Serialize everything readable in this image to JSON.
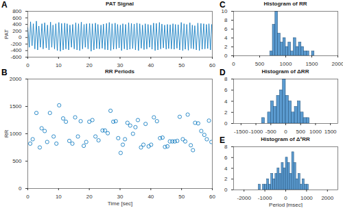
{
  "chart_data": [
    {
      "type": "line",
      "annotation": "A",
      "title": "PAT Signal",
      "ylabel": "PAT",
      "color": "#0072bd",
      "xlim": [
        0,
        60
      ],
      "xticks": [
        0,
        10,
        20,
        30,
        40,
        50,
        60
      ],
      "ylim": [
        -600,
        800
      ],
      "yticks": [
        -600,
        -400,
        -200,
        0,
        200,
        400,
        600,
        800
      ],
      "x": [
        0,
        0.5,
        0.9,
        1.4,
        1.8,
        2.3,
        2.8,
        3.2,
        3.6,
        4.1,
        4.6,
        5.0,
        5.5,
        6.0,
        6.4,
        6.9,
        7.4,
        7.8,
        8.2,
        8.7,
        9.1,
        9.6,
        10.1,
        10.6,
        11.0,
        11.5,
        12.0,
        12.4,
        12.8,
        13.3,
        13.7,
        14.2,
        14.6,
        15.1,
        15.6,
        16.0,
        16.5,
        16.9,
        17.4,
        17.8,
        18.3,
        18.7,
        19.1,
        19.6,
        20.1,
        20.6,
        21.0,
        21.5,
        22.0,
        22.4,
        22.8,
        23.3,
        23.8,
        24.2,
        24.6,
        25.1,
        25.6,
        26.0,
        26.5,
        27.0,
        27.4,
        27.9,
        28.4,
        28.8,
        29.2,
        29.7,
        30.1,
        30.5,
        30.9,
        31.4,
        31.8,
        32.3,
        32.8,
        33.2,
        33.7,
        34.1,
        34.6,
        35.0,
        35.5,
        36.0,
        36.4,
        36.9,
        37.3,
        37.8,
        38.2,
        38.7,
        39.1,
        39.6,
        40.0,
        40.4,
        40.9,
        41.4,
        41.8,
        42.3,
        42.8,
        43.2,
        43.6,
        44.1,
        44.5,
        45.0,
        45.4,
        45.8,
        46.3,
        46.7,
        47.2,
        47.6,
        48.0,
        48.5,
        48.9,
        49.4,
        49.9,
        50.4,
        50.8,
        51.2,
        51.7,
        52.2,
        52.7,
        53.1,
        53.5,
        53.9,
        54.3,
        54.8,
        55.3,
        55.8,
        56.3,
        56.7,
        57.2,
        57.6,
        58.1,
        58.5,
        58.9,
        59.4,
        59.8,
        60
      ],
      "values": [
        300,
        -300,
        480,
        -250,
        420,
        -350,
        500,
        -380,
        350,
        -300,
        420,
        -350,
        450,
        -320,
        380,
        -380,
        470,
        -300,
        380,
        -350,
        420,
        -400,
        460,
        -420,
        430,
        -380,
        440,
        -350,
        420,
        -380,
        380,
        -300,
        400,
        -350,
        450,
        -380,
        420,
        -400,
        470,
        -350,
        400,
        -300,
        420,
        -350,
        430,
        -420,
        420,
        -380,
        440,
        -340,
        400,
        -350,
        380,
        -330,
        410,
        -370,
        430,
        -380,
        460,
        -400,
        420,
        -360,
        440,
        -350,
        400,
        -320,
        380,
        -400,
        420,
        -350,
        400,
        -380,
        450,
        -360,
        430,
        -340,
        410,
        -380,
        440,
        -400,
        420,
        -330,
        380,
        -370,
        420,
        -350,
        400,
        -300,
        380,
        -360,
        440,
        -400,
        430,
        -380,
        460,
        -350,
        410,
        -320,
        380,
        -360,
        400,
        -340,
        390,
        -350,
        420,
        -360,
        400,
        -330,
        390,
        -380,
        460,
        -400,
        420,
        -360,
        400,
        -390,
        450,
        -340,
        380,
        -350,
        360,
        -380,
        440,
        -400,
        430,
        -360,
        420,
        -350,
        400,
        -340,
        420,
        -380,
        400,
        100
      ]
    },
    {
      "type": "scatter",
      "annotation": "B",
      "title": "RR Periods",
      "xlabel": "Time [sec]",
      "ylabel": "RR",
      "color": "#0072bd",
      "marker": "o",
      "xlim": [
        0,
        60
      ],
      "xticks": [
        0,
        10,
        20,
        30,
        40,
        50,
        60
      ],
      "ylim": [
        0,
        2000
      ],
      "yticks": [
        0,
        500,
        1000,
        1500,
        2000
      ],
      "x": [
        0.8,
        1.6,
        2.8,
        3.9,
        4.5,
        5.5,
        6.3,
        7.2,
        8.4,
        9.3,
        10.2,
        11.5,
        12.4,
        13.5,
        14.5,
        15.4,
        16.3,
        17.2,
        18.2,
        19.0,
        20.0,
        21.0,
        22.0,
        23.0,
        24.3,
        25.1,
        26.0,
        26.9,
        27.8,
        28.6,
        29.4,
        30.2,
        30.9,
        31.6,
        32.4,
        33.3,
        34.2,
        35.0,
        35.8,
        36.8,
        37.6,
        38.3,
        39.3,
        40.1,
        41.0,
        42.0,
        43.0,
        43.8,
        44.6,
        45.4,
        46.2,
        47.0,
        47.8,
        48.6,
        49.4,
        50.4,
        51.2,
        52.0,
        53.0,
        53.7,
        54.4,
        55.4,
        56.4,
        57.4,
        58.2,
        58.9,
        59.7
      ],
      "values": [
        820,
        900,
        1380,
        750,
        1100,
        1050,
        850,
        1380,
        950,
        820,
        1520,
        1280,
        1220,
        870,
        820,
        1300,
        950,
        1230,
        780,
        850,
        1220,
        1250,
        950,
        880,
        1060,
        1060,
        1010,
        1420,
        1220,
        1230,
        920,
        650,
        800,
        900,
        1200,
        1150,
        1000,
        1120,
        1250,
        750,
        800,
        1180,
        770,
        800,
        1300,
        1230,
        920,
        930,
        760,
        770,
        860,
        860,
        860,
        870,
        1310,
        900,
        860,
        1350,
        790,
        700,
        1200,
        1190,
        1050,
        980,
        900,
        1240,
        850
      ]
    },
    {
      "type": "histogram",
      "annotation": "C",
      "title": "Histogram of RR",
      "color": "#5b9bd0",
      "xlim": [
        0,
        2000
      ],
      "xticks": [
        0,
        500,
        1000,
        1500,
        2000
      ],
      "ylim": [
        0,
        10
      ],
      "yticks": [
        0,
        2,
        4,
        6,
        8,
        10
      ],
      "bins": [
        700,
        750,
        800,
        850,
        900,
        950,
        1000,
        1050,
        1100,
        1150,
        1200,
        1250,
        1300,
        1350,
        1400,
        1450,
        1500,
        1550
      ],
      "values": [
        1,
        7,
        10,
        5,
        3,
        4,
        2,
        3,
        1,
        4,
        2,
        3,
        2,
        1,
        1,
        0,
        1
      ]
    },
    {
      "type": "histogram",
      "annotation": "D",
      "title": "Histogram of ΔRR",
      "color": "#5b9bd0",
      "xlim": [
        -1750,
        1750
      ],
      "xticks": [
        -1500,
        -1000,
        -500,
        0,
        500,
        1000,
        1500
      ],
      "ylim": [
        0,
        8
      ],
      "yticks": [
        0,
        2,
        4,
        6,
        8
      ],
      "bins": [
        -800,
        -700,
        -600,
        -500,
        -400,
        -300,
        -200,
        -100,
        0,
        100,
        200,
        300,
        400,
        500,
        600,
        700,
        800
      ],
      "values": [
        1,
        0,
        2,
        4,
        3,
        5,
        6,
        8,
        5,
        4,
        2,
        3,
        4,
        2,
        1,
        1
      ]
    },
    {
      "type": "histogram",
      "annotation": "E",
      "title": "Histogram of Δ²RR",
      "xlabel": "Period [msec]",
      "color": "#5b9bd0",
      "xlim": [
        -2500,
        2500
      ],
      "xticks": [
        -2000,
        -1000,
        0,
        1000,
        2000
      ],
      "ylim": [
        0,
        8
      ],
      "yticks": [
        0,
        2,
        4,
        6,
        8
      ],
      "bins": [
        -1300,
        -1200,
        -1100,
        -1000,
        -900,
        -800,
        -700,
        -600,
        -500,
        -400,
        -300,
        -200,
        -100,
        0,
        100,
        200,
        300,
        400,
        500,
        600,
        700,
        800,
        900,
        1000,
        1100
      ],
      "values": [
        1,
        0,
        1,
        1,
        2,
        1,
        3,
        2,
        3,
        4,
        3,
        5,
        4,
        6,
        5,
        3,
        7,
        5,
        2,
        3,
        1,
        2,
        1,
        1
      ]
    }
  ]
}
